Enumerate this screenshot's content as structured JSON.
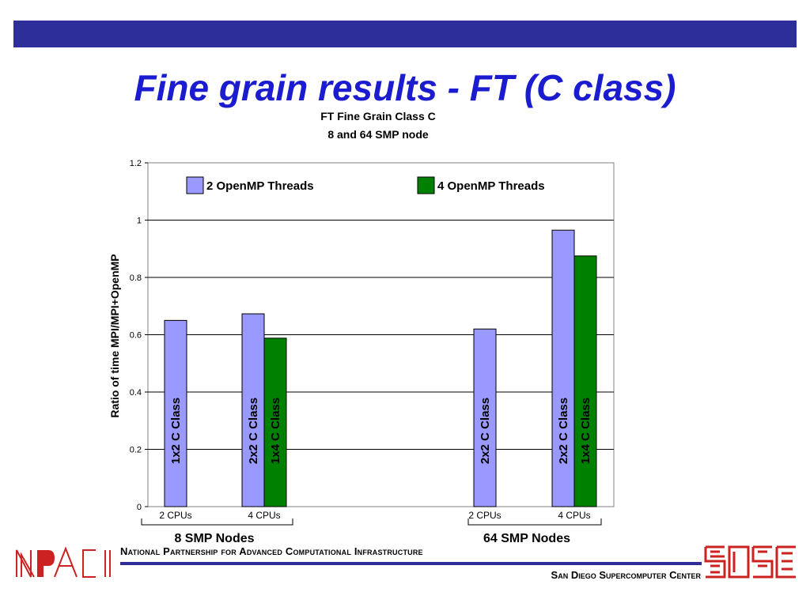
{
  "slide": {
    "title": "Fine grain results - FT (C class)"
  },
  "chart_data": {
    "type": "bar",
    "title": [
      "FT Fine Grain Class C",
      "8  and 64 SMP node"
    ],
    "ylabel": "Ratio of time MPI/MPI+OpenMP",
    "ylim": [
      0,
      1.2
    ],
    "yticks": [
      "0",
      "0.2",
      "0.4",
      "0.6",
      "0.8",
      "1",
      "1.2"
    ],
    "grid": true,
    "legend_position": "top, inside plot",
    "series": [
      {
        "name": "2 OpenMP Threads",
        "color": "#9999ff"
      },
      {
        "name": "4 OpenMP Threads",
        "color": "#008000"
      }
    ],
    "groups": [
      {
        "label": "8 SMP Nodes",
        "categories": [
          {
            "label": "2 CPUs",
            "bars": [
              {
                "series": 0,
                "value": 0.65,
                "label": "1x2 C Class"
              }
            ]
          },
          {
            "label": "4 CPUs",
            "bars": [
              {
                "series": 0,
                "value": 0.673,
                "label": "2x2 C Class"
              },
              {
                "series": 1,
                "value": 0.588,
                "label": "1x4 C Class"
              }
            ]
          }
        ]
      },
      {
        "label": "64 SMP Nodes",
        "categories": [
          {
            "label": "2 CPUs",
            "bars": [
              {
                "series": 0,
                "value": 0.62,
                "label": "2x2 C Class"
              }
            ]
          },
          {
            "label": "4 CPUs",
            "bars": [
              {
                "series": 0,
                "value": 0.965,
                "label": "2x2 C Class"
              },
              {
                "series": 1,
                "value": 0.875,
                "label": "1x4 C Class"
              }
            ]
          }
        ]
      }
    ]
  },
  "footer": {
    "org_name": "National Partnership for Advanced Computational Infrastructure",
    "center_name": "San Diego Supercomputer Center",
    "npaci_logo_text": "NPACI",
    "accent_color": "#2e2e9a",
    "logo_color": "#cc2222"
  }
}
